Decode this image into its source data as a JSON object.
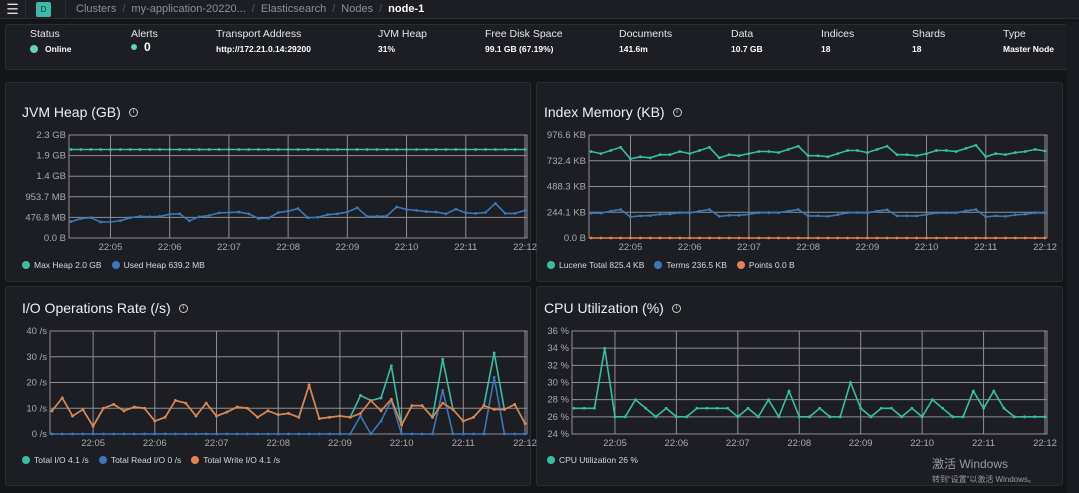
{
  "breadcrumb": {
    "space": "D",
    "items": [
      "Clusters",
      "my-application-20220...",
      "Elasticsearch",
      "Nodes"
    ],
    "current": "node-1"
  },
  "summary": [
    {
      "label": "Status",
      "value": "Online",
      "dot": "#5fd4b8"
    },
    {
      "label": "Alerts",
      "value": "0",
      "dot": "#5fd4b8"
    },
    {
      "label": "Transport Address",
      "value": "http://172.21.0.14:29200"
    },
    {
      "label": "JVM Heap",
      "value": "31%"
    },
    {
      "label": "Free Disk Space",
      "value": "99.1 GB (67.19%)"
    },
    {
      "label": "Documents",
      "value": "141.6m"
    },
    {
      "label": "Data",
      "value": "10.7 GB"
    },
    {
      "label": "Indices",
      "value": "18"
    },
    {
      "label": "Shards",
      "value": "18"
    },
    {
      "label": "Type",
      "value": "Master Node"
    }
  ],
  "colors": {
    "teal": "#36bfa5",
    "blue": "#3b78b8",
    "orange": "#e5834c"
  },
  "x": [
    "22:04:20",
    "22:04:30",
    "22:04:40",
    "22:04:50",
    "22:05:00",
    "22:05:10",
    "22:05:20",
    "22:05:30",
    "22:05:40",
    "22:05:50",
    "22:06:00",
    "22:06:10",
    "22:06:20",
    "22:06:30",
    "22:06:40",
    "22:06:50",
    "22:07:00",
    "22:07:10",
    "22:07:20",
    "22:07:30",
    "22:07:40",
    "22:07:50",
    "22:08:00",
    "22:08:10",
    "22:08:20",
    "22:08:30",
    "22:08:40",
    "22:08:50",
    "22:09:00",
    "22:09:10",
    "22:09:20",
    "22:09:30",
    "22:09:40",
    "22:09:50",
    "22:10:00",
    "22:10:10",
    "22:10:20",
    "22:10:30",
    "22:10:40",
    "22:10:50",
    "22:11:00",
    "22:11:10",
    "22:11:20",
    "22:11:30",
    "22:11:40",
    "22:11:50",
    "22:12:00"
  ],
  "xticks": [
    "22:05",
    "22:06",
    "22:07",
    "22:08",
    "22:09",
    "22:10",
    "22:11",
    "22:12"
  ],
  "chart_data": [
    {
      "type": "line",
      "title": "JVM Heap (GB)",
      "ylim": [
        0,
        2384.2
      ],
      "yunit": "MB",
      "yticks": [
        0,
        476.8,
        953.7,
        1430.5,
        1907.3,
        2384.2
      ],
      "yticklabels": [
        "0.0 B",
        "476.8 MB",
        "953.7 MB",
        "1.4 GB",
        "1.9 GB",
        "2.3 GB"
      ],
      "series": [
        {
          "name": "Max Heap",
          "legend": "Max Heap 2.0 GB",
          "color": "#36bfa5",
          "values": [
            2048,
            2048,
            2048,
            2048,
            2048,
            2048,
            2048,
            2048,
            2048,
            2048,
            2048,
            2048,
            2048,
            2048,
            2048,
            2048,
            2048,
            2048,
            2048,
            2048,
            2048,
            2048,
            2048,
            2048,
            2048,
            2048,
            2048,
            2048,
            2048,
            2048,
            2048,
            2048,
            2048,
            2048,
            2048,
            2048,
            2048,
            2048,
            2048,
            2048,
            2048,
            2048,
            2048,
            2048,
            2048,
            2048,
            2048
          ]
        },
        {
          "name": "Used Heap",
          "legend": "Used Heap 639.2 MB",
          "color": "#3b78b8",
          "values": [
            380,
            450,
            470,
            370,
            370,
            400,
            470,
            500,
            490,
            500,
            550,
            560,
            400,
            490,
            520,
            580,
            590,
            600,
            560,
            450,
            460,
            590,
            620,
            680,
            470,
            480,
            540,
            560,
            600,
            700,
            500,
            500,
            510,
            720,
            660,
            640,
            610,
            600,
            560,
            670,
            580,
            570,
            590,
            800,
            570,
            570,
            639
          ]
        }
      ]
    },
    {
      "type": "line",
      "title": "Index Memory (KB)",
      "ylim": [
        0,
        976.6
      ],
      "yunit": "KB",
      "yticks": [
        0,
        244.1,
        488.3,
        732.4,
        976.6
      ],
      "yticklabels": [
        "0.0 B",
        "244.1 KB",
        "488.3 KB",
        "732.4 KB",
        "976.6 KB"
      ],
      "series": [
        {
          "name": "Lucene Total",
          "legend": "Lucene Total 825.4 KB",
          "color": "#36bfa5",
          "values": [
            820,
            800,
            830,
            860,
            750,
            770,
            760,
            790,
            790,
            820,
            800,
            830,
            860,
            760,
            790,
            780,
            800,
            820,
            820,
            810,
            840,
            870,
            780,
            780,
            770,
            800,
            830,
            830,
            810,
            840,
            870,
            790,
            790,
            780,
            800,
            830,
            830,
            820,
            850,
            880,
            770,
            800,
            790,
            810,
            820,
            840,
            825
          ]
        },
        {
          "name": "Terms",
          "legend": "Terms 236.5 KB",
          "color": "#3b78b8",
          "values": [
            236,
            236,
            255,
            270,
            200,
            210,
            212,
            225,
            228,
            240,
            238,
            255,
            270,
            205,
            215,
            215,
            225,
            240,
            240,
            240,
            255,
            270,
            210,
            210,
            205,
            220,
            240,
            240,
            238,
            255,
            268,
            210,
            210,
            210,
            222,
            238,
            238,
            238,
            258,
            270,
            200,
            210,
            205,
            220,
            225,
            240,
            236
          ]
        },
        {
          "name": "Points",
          "legend": "Points 0.0 B",
          "color": "#e5834c",
          "values": [
            0,
            0,
            0,
            0,
            0,
            0,
            0,
            0,
            0,
            0,
            0,
            0,
            0,
            0,
            0,
            0,
            0,
            0,
            0,
            0,
            0,
            0,
            0,
            0,
            0,
            0,
            0,
            0,
            0,
            0,
            0,
            0,
            0,
            0,
            0,
            0,
            0,
            0,
            0,
            0,
            0,
            0,
            0,
            0,
            0,
            0,
            0
          ]
        }
      ]
    },
    {
      "type": "line",
      "title": "I/O Operations Rate (/s)",
      "ylim": [
        0,
        40
      ],
      "yunit": "/s",
      "yticks": [
        0,
        10,
        20,
        30,
        40
      ],
      "yticklabels": [
        "0 /s",
        "10 /s",
        "20 /s",
        "30 /s",
        "40 /s"
      ],
      "series": [
        {
          "name": "Total I/O",
          "legend": "Total I/O 4.1 /s",
          "color": "#36bfa5",
          "values": [
            9,
            14,
            7,
            9.5,
            3,
            10,
            11.5,
            9,
            10.5,
            10,
            5,
            6.5,
            13,
            12,
            7,
            12,
            7,
            8.5,
            10.5,
            10,
            6.5,
            9,
            7.5,
            8,
            6.5,
            19,
            6,
            6.5,
            7,
            6.5,
            15,
            13,
            14,
            26.5,
            3.5,
            11,
            11,
            6.5,
            29,
            9.5,
            5,
            6.5,
            11,
            31.5,
            9.5,
            11.5,
            4.1
          ]
        },
        {
          "name": "Total Read I/O",
          "legend": "Total Read I/O 0 /s",
          "color": "#3b78b8",
          "values": [
            0,
            0,
            0,
            0,
            0,
            0,
            0,
            0,
            0,
            0,
            0,
            0,
            0,
            0,
            0,
            0,
            0,
            0,
            0,
            0,
            0,
            0,
            0,
            0,
            0,
            0,
            0,
            0,
            0,
            0,
            7,
            0,
            5,
            13,
            0,
            0,
            0,
            0,
            17,
            0,
            0,
            0,
            0,
            22,
            0,
            0,
            0
          ]
        },
        {
          "name": "Total Write I/O",
          "legend": "Total Write I/O 4.1 /s",
          "color": "#e5834c",
          "values": [
            9,
            14,
            7,
            9.5,
            3,
            10,
            11.5,
            9,
            10.5,
            10,
            5,
            6.5,
            13,
            12,
            7,
            12,
            7,
            8.5,
            10.5,
            10,
            6.5,
            9,
            7.5,
            8,
            6.5,
            19,
            6,
            6.5,
            7,
            6.5,
            8,
            13,
            9,
            13.5,
            3.5,
            11,
            11,
            6.5,
            12,
            9.5,
            5,
            6.5,
            11,
            9.5,
            9.5,
            11.5,
            4.1
          ]
        }
      ]
    },
    {
      "type": "line",
      "title": "CPU Utilization (%)",
      "ylim": [
        24,
        36
      ],
      "yunit": "%",
      "yticks": [
        24,
        26,
        28,
        30,
        32,
        34,
        36
      ],
      "yticklabels": [
        "24 %",
        "26 %",
        "28 %",
        "30 %",
        "32 %",
        "34 %",
        "36 %"
      ],
      "series": [
        {
          "name": "CPU Utilization",
          "legend": "CPU Utilization 26 %",
          "color": "#36bfa5",
          "values": [
            27,
            27,
            27,
            34,
            26,
            26,
            28,
            27,
            26,
            27,
            26,
            26,
            27,
            27,
            27,
            27,
            26,
            27,
            26,
            28,
            26,
            29,
            26,
            26,
            27,
            26,
            26,
            30,
            27,
            26,
            27,
            27,
            26,
            27,
            26,
            28,
            27,
            26,
            26,
            29,
            27,
            29,
            27,
            26,
            26,
            26,
            26
          ]
        }
      ]
    }
  ],
  "watermark": {
    "line1": "激活 Windows",
    "line2": "转到“设置”以激活 Windows。"
  }
}
